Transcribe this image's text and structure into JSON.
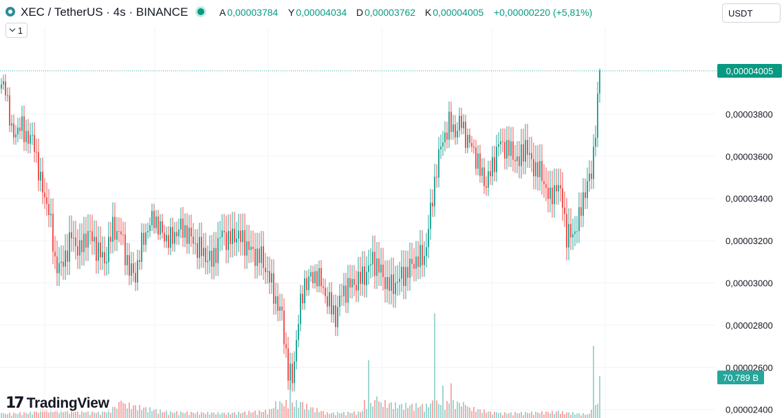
{
  "header": {
    "title": "XEC / TetherUS · 4s · BINANCE",
    "ohlc": [
      {
        "key": "A",
        "value": "0,00003784"
      },
      {
        "key": "Y",
        "value": "0,00004034"
      },
      {
        "key": "D",
        "value": "0,00003762"
      },
      {
        "key": "K",
        "value": "0,00004005"
      }
    ],
    "change": "+0,00000220 (+5,81%)",
    "collapse_label": "1",
    "currency": "USDT"
  },
  "brand": "TradingView",
  "colors": {
    "up": "#26a69a",
    "down": "#ef5350",
    "up_volume": "#9ed6d1",
    "down_volume": "#f7a9a7",
    "accent": "#089981"
  },
  "chart_data": {
    "type": "candlestick",
    "price_axis_labels": [
      "0,00003800",
      "0,00003600",
      "0,00003400",
      "0,00003200",
      "0,00003000",
      "0,00002800",
      "0,00002600",
      "0,00002400"
    ],
    "price_ticks": [
      3.8e-05,
      3.6e-05,
      3.4e-05,
      3.2e-05,
      3e-05,
      2.8e-05,
      2.6e-05,
      2.4e-05
    ],
    "ylim": [
      2.36e-05,
      4.21e-05
    ],
    "last_price": 4.005e-05,
    "last_price_label": "0,00004005",
    "volume_label": "70,789 B",
    "grid": true,
    "anchors": [
      [
        0,
        3.92e-05
      ],
      [
        2,
        3.94e-05
      ],
      [
        5,
        3.7e-05
      ],
      [
        9,
        3.74e-05
      ],
      [
        13,
        3.69e-05
      ],
      [
        16,
        3.66e-05
      ],
      [
        19,
        3.47e-05
      ],
      [
        23,
        3.35e-05
      ],
      [
        26,
        3.1e-05
      ],
      [
        29,
        3.07e-05
      ],
      [
        34,
        3.22e-05
      ],
      [
        38,
        3.15e-05
      ],
      [
        42,
        3.24e-05
      ],
      [
        46,
        3.17e-05
      ],
      [
        50,
        3.1e-05
      ],
      [
        54,
        3.26e-05
      ],
      [
        58,
        3.23e-05
      ],
      [
        62,
        3.06e-05
      ],
      [
        65,
        3.04e-05
      ],
      [
        69,
        3.22e-05
      ],
      [
        74,
        3.31e-05
      ],
      [
        78,
        3.23e-05
      ],
      [
        82,
        3.2e-05
      ],
      [
        86,
        3.26e-05
      ],
      [
        90,
        3.24e-05
      ],
      [
        94,
        3.18e-05
      ],
      [
        98,
        3.14e-05
      ],
      [
        102,
        3.1e-05
      ],
      [
        107,
        3.24e-05
      ],
      [
        110,
        3.2e-05
      ],
      [
        114,
        3.23e-05
      ],
      [
        118,
        3.19e-05
      ],
      [
        122,
        3.14e-05
      ],
      [
        126,
        3.12e-05
      ],
      [
        130,
        3.02e-05
      ],
      [
        133,
        2.92e-05
      ],
      [
        136,
        2.84e-05
      ],
      [
        139,
        2.58e-05
      ],
      [
        141,
        2.54e-05
      ],
      [
        144,
        2.83e-05
      ],
      [
        147,
        3e-05
      ],
      [
        150,
        3.02e-05
      ],
      [
        153,
        3.04e-05
      ],
      [
        156,
        2.97e-05
      ],
      [
        159,
        2.9e-05
      ],
      [
        162,
        2.84e-05
      ],
      [
        165,
        2.95e-05
      ],
      [
        169,
        2.99e-05
      ],
      [
        173,
        3.01e-05
      ],
      [
        177,
        3.05e-05
      ],
      [
        180,
        3.11e-05
      ],
      [
        183,
        3.07e-05
      ],
      [
        186,
        3.01e-05
      ],
      [
        189,
        2.98e-05
      ],
      [
        193,
        3.02e-05
      ],
      [
        197,
        3.06e-05
      ],
      [
        201,
        3.11e-05
      ],
      [
        205,
        3.12e-05
      ],
      [
        208,
        3.33e-05
      ],
      [
        211,
        3.55e-05
      ],
      [
        214,
        3.68e-05
      ],
      [
        217,
        3.75e-05
      ],
      [
        220,
        3.72e-05
      ],
      [
        223,
        3.76e-05
      ],
      [
        226,
        3.67e-05
      ],
      [
        229,
        3.63e-05
      ],
      [
        232,
        3.53e-05
      ],
      [
        235,
        3.47e-05
      ],
      [
        238,
        3.55e-05
      ],
      [
        241,
        3.66e-05
      ],
      [
        245,
        3.64e-05
      ],
      [
        248,
        3.61e-05
      ],
      [
        251,
        3.57e-05
      ],
      [
        254,
        3.66e-05
      ],
      [
        257,
        3.56e-05
      ],
      [
        260,
        3.54e-05
      ],
      [
        263,
        3.48e-05
      ],
      [
        266,
        3.39e-05
      ],
      [
        269,
        3.47e-05
      ],
      [
        272,
        3.39e-05
      ],
      [
        274,
        3.22e-05
      ],
      [
        277,
        3.23e-05
      ],
      [
        280,
        3.3e-05
      ],
      [
        283,
        3.45e-05
      ],
      [
        286,
        3.51e-05
      ],
      [
        287,
        3.62e-05
      ],
      [
        288,
        3.75e-05
      ],
      [
        289,
        3.85e-05
      ],
      [
        290,
        4.005e-05
      ]
    ],
    "volume_anchors": [
      [
        0,
        0.07
      ],
      [
        16,
        0.09
      ],
      [
        20,
        0.14
      ],
      [
        50,
        0.09
      ],
      [
        58,
        0.24
      ],
      [
        80,
        0.1
      ],
      [
        110,
        0.08
      ],
      [
        130,
        0.12
      ],
      [
        140,
        0.5
      ],
      [
        146,
        0.22
      ],
      [
        158,
        0.08
      ],
      [
        175,
        0.1
      ],
      [
        178,
        0.8
      ],
      [
        182,
        0.3
      ],
      [
        189,
        0.22
      ],
      [
        208,
        0.2
      ],
      [
        210,
        1.45
      ],
      [
        214,
        0.45
      ],
      [
        218,
        0.48
      ],
      [
        225,
        0.18
      ],
      [
        240,
        0.08
      ],
      [
        270,
        0.1
      ],
      [
        285,
        0.06
      ],
      [
        287,
        1.0
      ],
      [
        290,
        0.58
      ]
    ]
  }
}
